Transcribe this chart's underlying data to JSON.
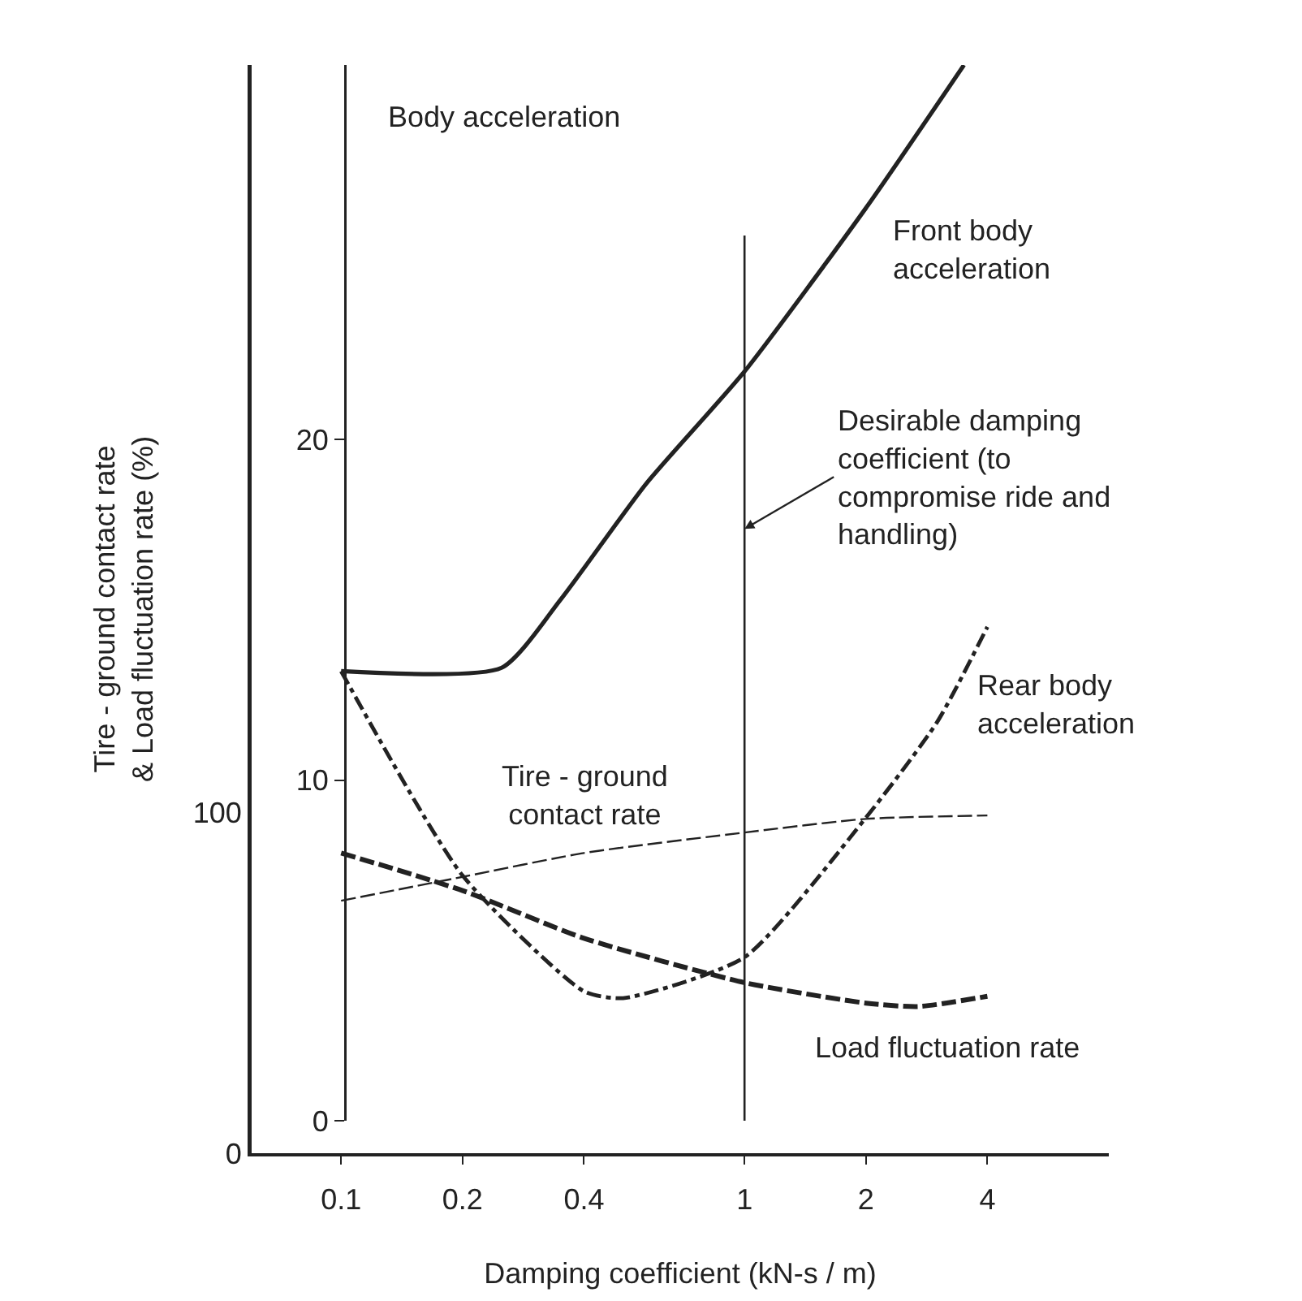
{
  "chart_data": {
    "type": "line",
    "xlabel": "Damping coefficient (kN-s / m)",
    "ylabel": "Tire - ground contact rate & Load fluctuation rate (%)",
    "y2label": "Body acceleration",
    "log": "x",
    "grid": false,
    "legend": false,
    "xlim": [
      0.06,
      8
    ],
    "xticks": [
      0.1,
      0.2,
      0.4,
      1,
      2,
      4
    ],
    "ylim": [
      0,
      319
    ],
    "yticks": [
      0,
      100
    ],
    "y2lim": [
      0,
      31
    ],
    "y2ticks": [
      0,
      10,
      20
    ],
    "series": [
      {
        "name": "Front body acceleration",
        "color": "#222222",
        "axis": "y2",
        "line_style": "solid",
        "x": [
          0.1,
          0.25,
          0.35,
          0.57,
          1,
          2,
          3.5
        ],
        "values": [
          13.2,
          13.3,
          15.3,
          18.7,
          22.0,
          26.8,
          31.0
        ]
      },
      {
        "name": "Rear body acceleration",
        "color": "#222222",
        "axis": "y2",
        "line_style": "dashdot",
        "x": [
          0.1,
          0.2,
          0.4,
          0.5,
          1,
          2,
          3,
          4
        ],
        "values": [
          13.2,
          7.2,
          3.8,
          3.6,
          4.8,
          8.9,
          11.7,
          14.5
        ]
      },
      {
        "name": "Tire - ground contact rate",
        "color": "#222222",
        "line_style": "dashed",
        "x": [
          0.1,
          0.2,
          0.4,
          1,
          2,
          4
        ],
        "values": [
          74,
          81,
          88,
          94,
          98,
          99
        ]
      },
      {
        "name": "Load fluctuation rate",
        "color": "#222222",
        "line_style": "dashed",
        "x": [
          0.1,
          0.2,
          0.4,
          1,
          2,
          2.7,
          4
        ],
        "values": [
          88,
          77,
          63,
          50,
          44,
          43,
          46
        ]
      }
    ],
    "ref_lines": [
      {
        "axis": "x",
        "value": 1,
        "color": "#222222"
      }
    ],
    "annotations": [
      {
        "text": "Desirable damping coefficient (to compromise ride and handling)",
        "x": 1,
        "y": 183
      }
    ]
  }
}
